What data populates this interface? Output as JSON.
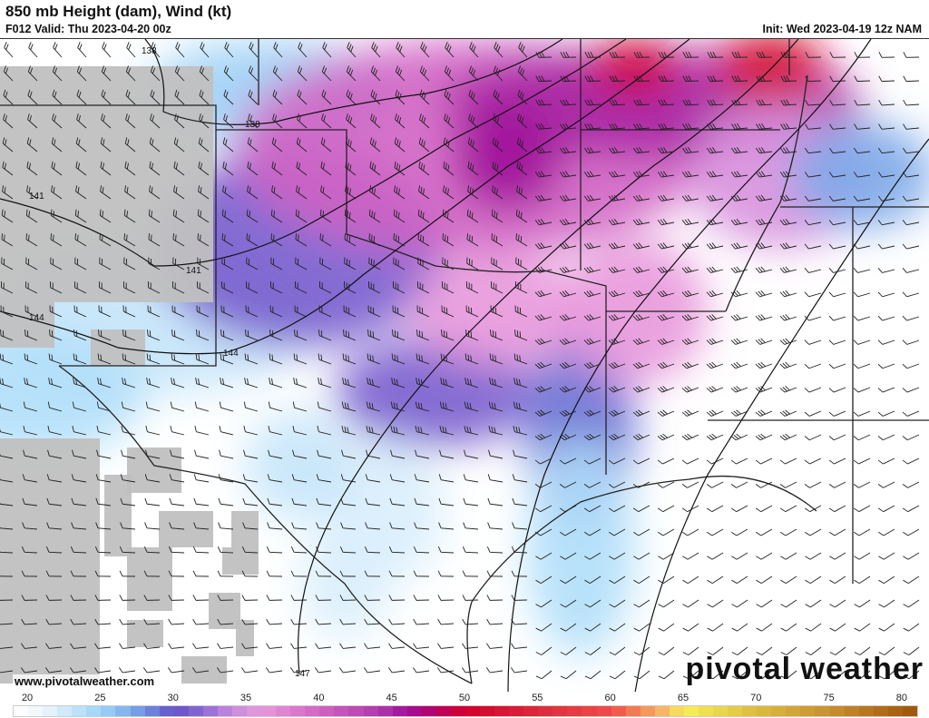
{
  "header": {
    "title": "850 mb Height (dam), Wind (kt)",
    "valid": "F012 Valid: Thu 2023-04-20 00z",
    "init": "Init: Wed 2023-04-19 12z NAM"
  },
  "map": {
    "contour_labels": [
      "138",
      "138",
      "141",
      "141",
      "144",
      "144",
      "147"
    ],
    "terrain_mask_color": "#c0c0c0",
    "website": "www.pivotalweather.com",
    "brand": "pivotal weather"
  },
  "colorbar": {
    "ticks": [
      "20",
      "25",
      "30",
      "35",
      "40",
      "45",
      "50",
      "55",
      "60",
      "65",
      "70",
      "75",
      "80"
    ],
    "range": [
      19,
      81
    ],
    "stops": [
      [
        19,
        "#ffffff"
      ],
      [
        21,
        "#eef6fd"
      ],
      [
        24,
        "#b0def9"
      ],
      [
        26,
        "#8cc4f2"
      ],
      [
        28,
        "#7090e0"
      ],
      [
        30,
        "#6450c8"
      ],
      [
        32,
        "#8c6ad4"
      ],
      [
        34,
        "#c88ade"
      ],
      [
        36,
        "#e898dc"
      ],
      [
        40,
        "#d264c4"
      ],
      [
        44,
        "#b03aae"
      ],
      [
        46,
        "#a0109a"
      ],
      [
        48,
        "#b80064"
      ],
      [
        50,
        "#d2002c"
      ],
      [
        55,
        "#dc2a3c"
      ],
      [
        60,
        "#f04c4c"
      ],
      [
        62,
        "#f28a56"
      ],
      [
        64,
        "#f8c46a"
      ],
      [
        65,
        "#f8f058"
      ],
      [
        70,
        "#dcbc40"
      ],
      [
        75,
        "#c89030"
      ],
      [
        81,
        "#a05408"
      ]
    ]
  }
}
